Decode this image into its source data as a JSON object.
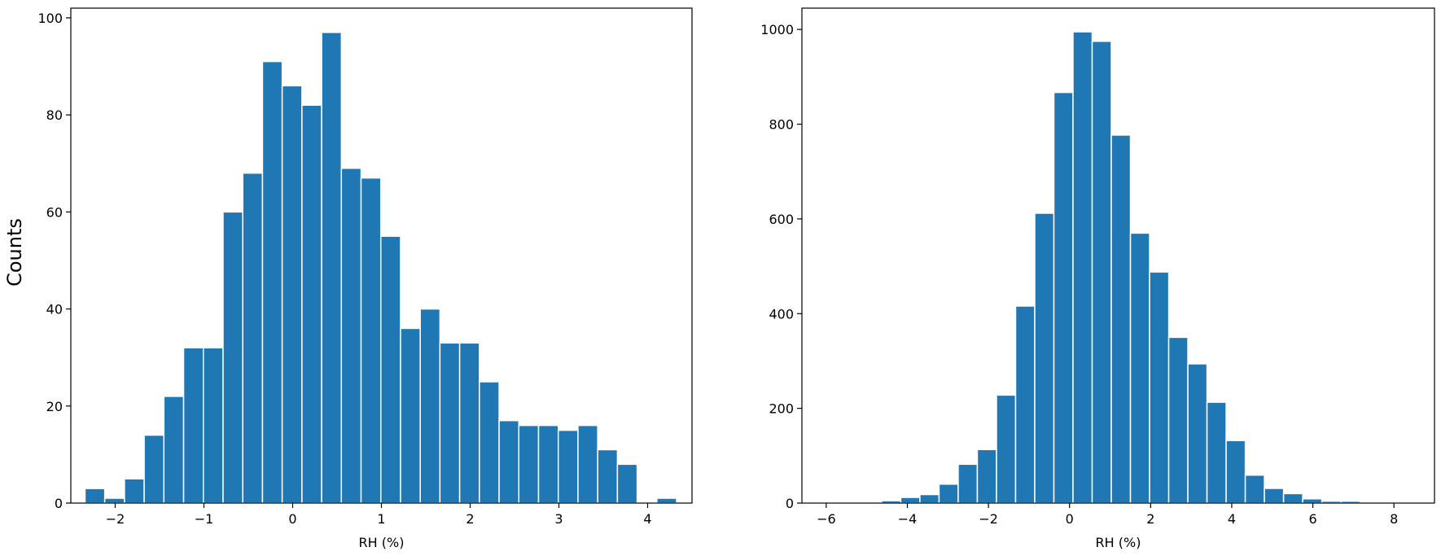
{
  "chart_data": [
    {
      "type": "bar",
      "histogram": true,
      "xlabel": "RH (%)",
      "ylabel": "Counts",
      "xlim": [
        -2.5,
        4.5
      ],
      "ylim": [
        0,
        102
      ],
      "xticks": [
        -2,
        -1,
        0,
        1,
        2,
        3,
        4
      ],
      "yticks": [
        0,
        20,
        40,
        60,
        80,
        100
      ],
      "bin_start": -2.34,
      "bin_width": 0.2222,
      "values": [
        3,
        1,
        5,
        14,
        22,
        32,
        32,
        60,
        68,
        91,
        86,
        82,
        97,
        69,
        67,
        55,
        36,
        40,
        33,
        33,
        25,
        17,
        16,
        16,
        15,
        16,
        11,
        8,
        0,
        1
      ],
      "grid": false
    },
    {
      "type": "bar",
      "histogram": true,
      "xlabel": "RH (%)",
      "ylabel": "",
      "xlim": [
        -6.6,
        9.0
      ],
      "ylim": [
        0,
        1045
      ],
      "xticks": [
        -6,
        -4,
        -2,
        0,
        2,
        4,
        6,
        8
      ],
      "yticks": [
        0,
        200,
        400,
        600,
        800,
        1000
      ],
      "bin_start": -6.05,
      "bin_width": 0.472,
      "values": [
        2,
        1,
        1,
        5,
        12,
        18,
        40,
        82,
        113,
        228,
        416,
        612,
        867,
        995,
        975,
        777,
        570,
        488,
        350,
        294,
        213,
        132,
        59,
        31,
        20,
        9,
        4,
        4,
        1,
        1
      ],
      "grid": false
    }
  ]
}
